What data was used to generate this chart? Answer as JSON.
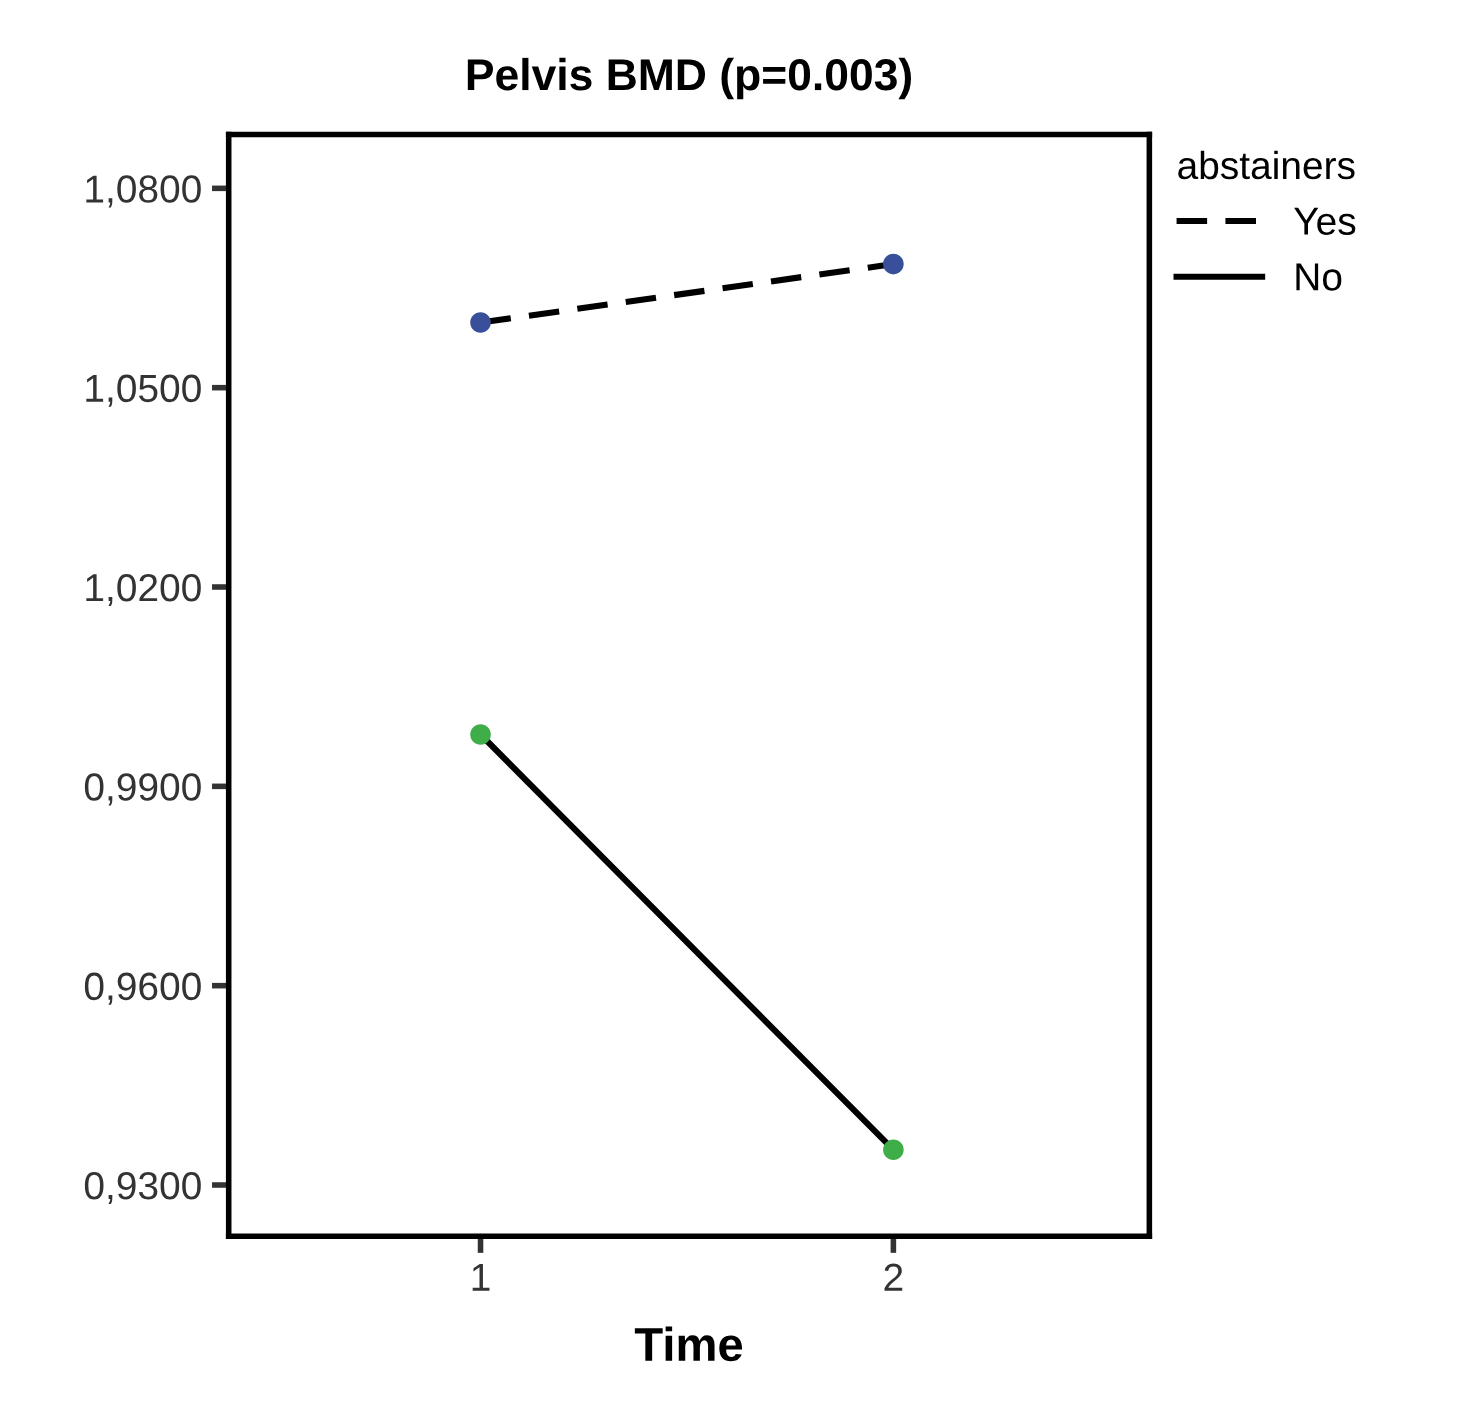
{
  "chart_data": {
    "type": "line",
    "title": "Pelvis BMD (p=0.003)",
    "xlabel": "Time",
    "legend_title": "abstainers",
    "x": [
      1,
      2
    ],
    "xlim": [
      0.39,
      2.62
    ],
    "xticks": [
      1,
      2
    ],
    "ylim": [
      0.9223,
      1.0881
    ],
    "yticks": [
      {
        "value": 0.93,
        "label": "0,9300"
      },
      {
        "value": 0.96,
        "label": "0,9600"
      },
      {
        "value": 0.99,
        "label": "0,9900"
      },
      {
        "value": 1.02,
        "label": "1,0200"
      },
      {
        "value": 1.05,
        "label": "1,0500"
      },
      {
        "value": 1.08,
        "label": "1,0800"
      }
    ],
    "series": [
      {
        "name": "Yes",
        "color": "#000000",
        "colors": [
          "#3a4f9a",
          "#3a4f9a"
        ],
        "line_style": "dashed",
        "values": [
          1.0598,
          1.0686
        ]
      },
      {
        "name": "No",
        "color": "#000000",
        "colors": [
          "#3fae49",
          "#3fae49"
        ],
        "line_style": "solid",
        "values": [
          0.9978,
          0.9353
        ]
      }
    ],
    "marker": "circle",
    "grid": false,
    "legend": "top right"
  }
}
